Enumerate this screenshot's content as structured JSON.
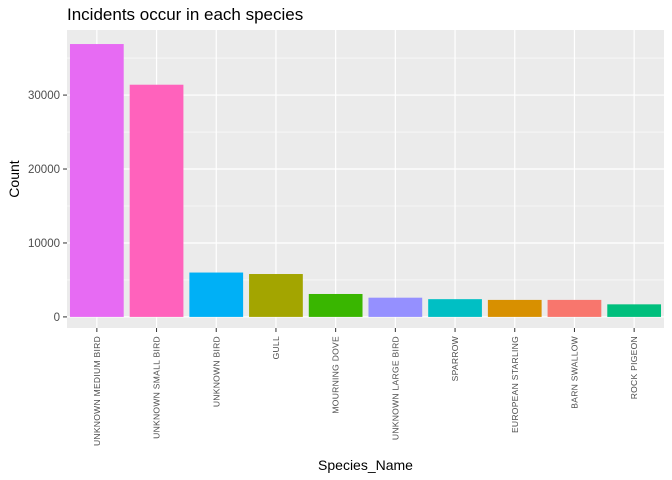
{
  "chart_data": {
    "type": "bar",
    "title": "Incidents occur in each species",
    "xlabel": "Species_Name",
    "ylabel": "Count",
    "ylim": [
      -1500,
      38800
    ],
    "yticks": [
      0,
      10000,
      20000,
      30000
    ],
    "ytick_labels": [
      "0",
      "10000",
      "20000",
      "30000"
    ],
    "categories": [
      "UNKNOWN MEDIUM BIRD",
      "UNKNOWN SMALL BIRD",
      "UNKNOWN BIRD",
      "GULL",
      "MOURNING DOVE",
      "UNKNOWN LARGE BIRD",
      "SPARROW",
      "EUROPEAN STARLING",
      "BARN SWALLOW",
      "ROCK PIGEON"
    ],
    "values": [
      36900,
      31400,
      6000,
      5800,
      3100,
      2600,
      2400,
      2300,
      2300,
      1700
    ],
    "colors": [
      "#E76BF3",
      "#FF62BC",
      "#00B0F6",
      "#A3A500",
      "#39B600",
      "#9590FF",
      "#00BFC4",
      "#D89000",
      "#F8766D",
      "#00BF7D"
    ],
    "grid": true,
    "legend": "none",
    "panel_background": "#EBEBEB",
    "gridline_color": "#FFFFFF"
  }
}
